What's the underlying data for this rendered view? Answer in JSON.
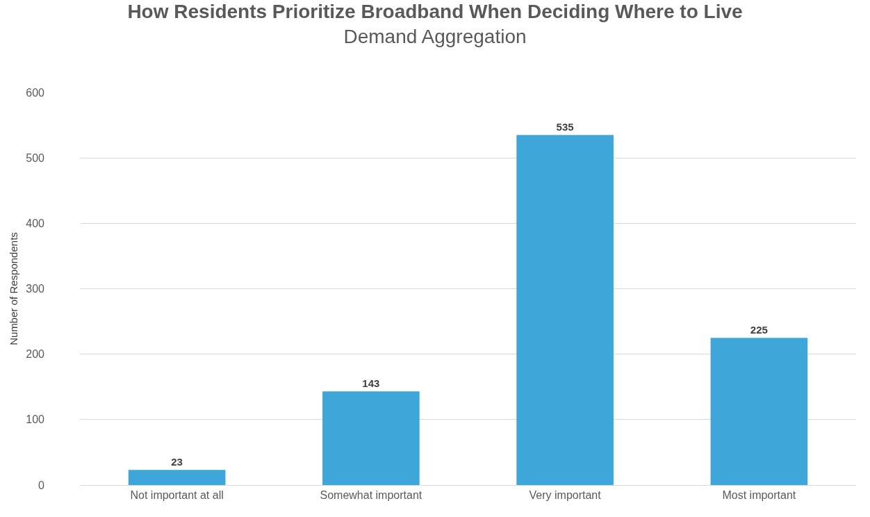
{
  "chart_data": {
    "type": "bar",
    "title": "How Residents Prioritize Broadband When Deciding Where to Live",
    "subtitle": "Demand Aggregation",
    "ylabel": "Number of Respondents",
    "categories": [
      "Not important at all",
      "Somewhat important",
      "Very important",
      "Most important"
    ],
    "values": [
      23,
      143,
      535,
      225
    ],
    "color": "#3ea6d8",
    "ylim": [
      0,
      600
    ],
    "yticks": [
      0,
      100,
      200,
      300,
      400,
      500,
      600
    ],
    "grid": "y",
    "data_labels": true,
    "legend": false
  }
}
